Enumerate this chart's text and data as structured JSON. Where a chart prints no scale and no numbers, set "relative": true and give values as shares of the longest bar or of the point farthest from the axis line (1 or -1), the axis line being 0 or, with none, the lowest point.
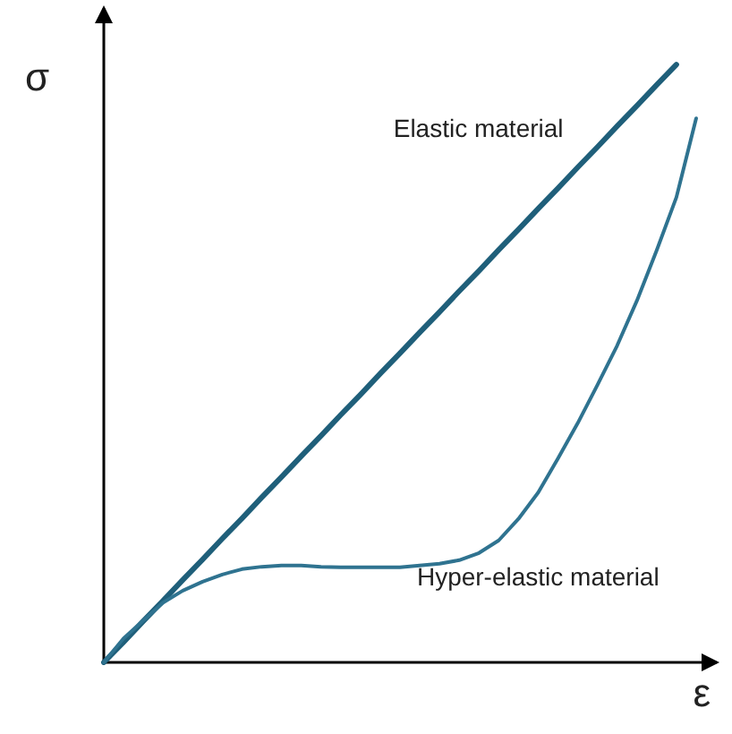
{
  "chart_data": {
    "type": "line",
    "relative": true,
    "xlabel": "ε",
    "ylabel": "σ",
    "grid": false,
    "legend": false,
    "marker": "none",
    "line_style": "solid",
    "categories": [
      null,
      null,
      null,
      null,
      null,
      null,
      null,
      null,
      null,
      null,
      null,
      null,
      null,
      null,
      null,
      null,
      null,
      null,
      null,
      null,
      null,
      null,
      null,
      null,
      null,
      null,
      null,
      null,
      null,
      null,
      null,
      null
    ],
    "series": [
      {
        "name": "Elastic material",
        "color": "#1f5f7a",
        "values": [
          0,
          0.034,
          0.069,
          0.103,
          0.138,
          0.172,
          0.207,
          0.241,
          0.276,
          0.31,
          0.345,
          0.379,
          0.414,
          0.448,
          0.483,
          0.517,
          0.552,
          0.586,
          0.621,
          0.655,
          0.69,
          0.724,
          0.759,
          0.793,
          0.828,
          0.862,
          0.897,
          0.931,
          0.966,
          1,
          null,
          null
        ]
      },
      {
        "name": "Hyper-elastic material",
        "color": "#2f7390",
        "values": [
          0,
          0.04,
          0.07,
          0.1,
          0.12,
          0.135,
          0.147,
          0.156,
          0.16,
          0.162,
          0.162,
          0.16,
          0.159,
          0.159,
          0.159,
          0.159,
          0.162,
          0.165,
          0.171,
          0.183,
          0.204,
          0.24,
          0.284,
          0.341,
          0.4,
          0.464,
          0.53,
          0.605,
          0.689,
          0.778,
          0.91,
          null
        ]
      }
    ]
  }
}
